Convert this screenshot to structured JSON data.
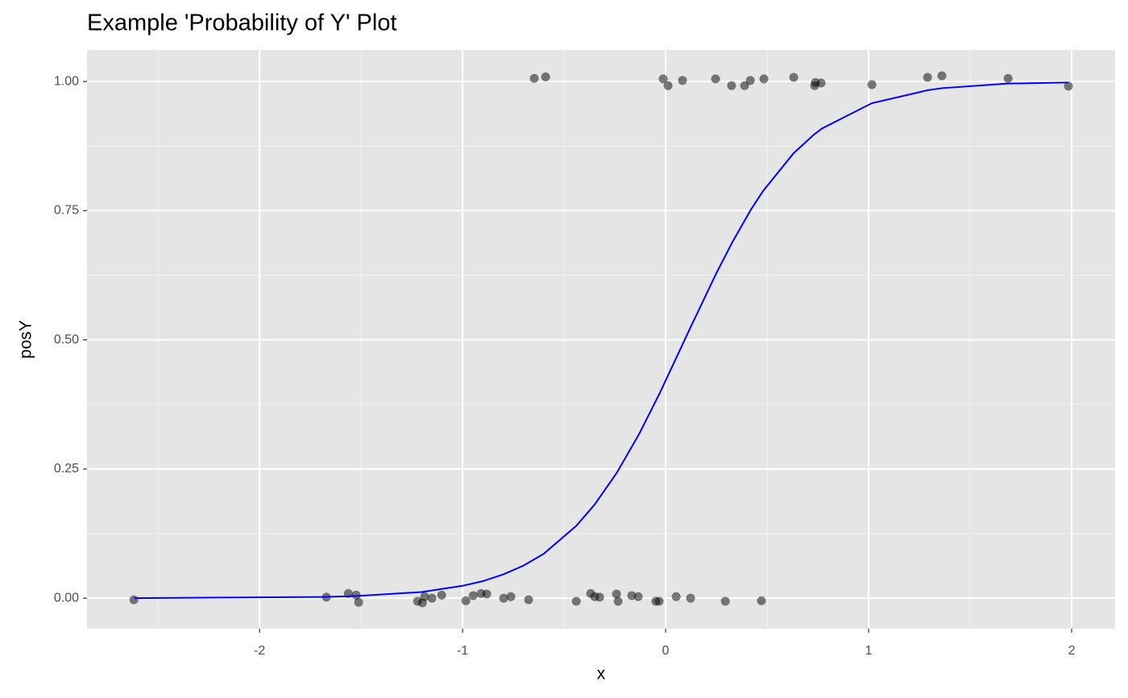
{
  "chart_data": {
    "type": "scatter",
    "title": "Example 'Probability of Y' Plot",
    "x_label": "x",
    "y_label": "posY",
    "xlim": [
      -2.85,
      2.214
    ],
    "ylim": [
      -0.059,
      1.061
    ],
    "xticks": [
      -2,
      -1,
      0,
      1,
      2
    ],
    "yticks": [
      {
        "value": 0,
        "label": "0.00"
      },
      {
        "value": 0.25,
        "label": "0.25"
      },
      {
        "value": 0.5,
        "label": "0.50"
      },
      {
        "value": 0.75,
        "label": "0.75"
      },
      {
        "value": 1,
        "label": "1.00"
      }
    ],
    "minor_xticks": [
      -2.5,
      -1.5,
      -0.5,
      0.5,
      1.5
    ],
    "minor_yticks": [
      0.125,
      0.375,
      0.625,
      0.875
    ],
    "grid": true,
    "series": [
      {
        "type": "scatter",
        "color": "#000000",
        "alpha": 0.5,
        "x": [
          -2.619,
          -1.671,
          -1.563,
          -1.524,
          -1.512,
          -1.222,
          -1.198,
          -1.187,
          -1.151,
          -1.103,
          -0.984,
          -0.948,
          -0.909,
          -0.881,
          -0.798,
          -0.762,
          -0.675,
          -0.44,
          -0.369,
          -0.349,
          -0.325,
          -0.242,
          -0.234,
          -0.167,
          -0.135,
          -0.048,
          -0.032,
          0.052,
          0.123,
          0.294,
          0.472,
          -0.647,
          -0.591,
          -0.012,
          0.012,
          0.083,
          0.246,
          0.325,
          0.389,
          0.417,
          0.484,
          0.631,
          0.734,
          0.738,
          0.766,
          1.016,
          1.29,
          1.361,
          1.687,
          1.984
        ],
        "values": [
          -0.003,
          0.002,
          0.009,
          0.006,
          -0.008,
          -0.006,
          -0.009,
          0.003,
          0.0,
          0.006,
          -0.005,
          0.005,
          0.009,
          0.008,
          0.0,
          0.003,
          -0.003,
          -0.006,
          0.009,
          0.003,
          0.002,
          0.008,
          -0.006,
          0.005,
          0.003,
          -0.006,
          -0.006,
          0.003,
          0.0,
          -0.006,
          -0.005,
          1.006,
          1.009,
          1.005,
          0.992,
          1.002,
          1.005,
          0.992,
          0.992,
          1.002,
          1.005,
          1.008,
          0.992,
          0.998,
          0.997,
          0.994,
          1.008,
          1.011,
          1.006,
          0.991
        ]
      },
      {
        "type": "line",
        "color": "#0000ff",
        "x": [
          -2.619,
          -1.671,
          -1.524,
          -1.2,
          -1.0,
          -0.9,
          -0.8,
          -0.7,
          -0.6,
          -0.44,
          -0.35,
          -0.24,
          -0.13,
          -0.03,
          0.05,
          0.12,
          0.25,
          0.33,
          0.42,
          0.48,
          0.63,
          0.73,
          0.77,
          1.016,
          1.29,
          1.36,
          1.687,
          1.984
        ],
        "values": [
          0.0001,
          0.0025,
          0.0041,
          0.012,
          0.024,
          0.033,
          0.046,
          0.063,
          0.086,
          0.14,
          0.181,
          0.243,
          0.318,
          0.396,
          0.463,
          0.522,
          0.629,
          0.69,
          0.752,
          0.788,
          0.861,
          0.897,
          0.909,
          0.958,
          0.983,
          0.987,
          0.996,
          0.998
        ]
      }
    ]
  }
}
